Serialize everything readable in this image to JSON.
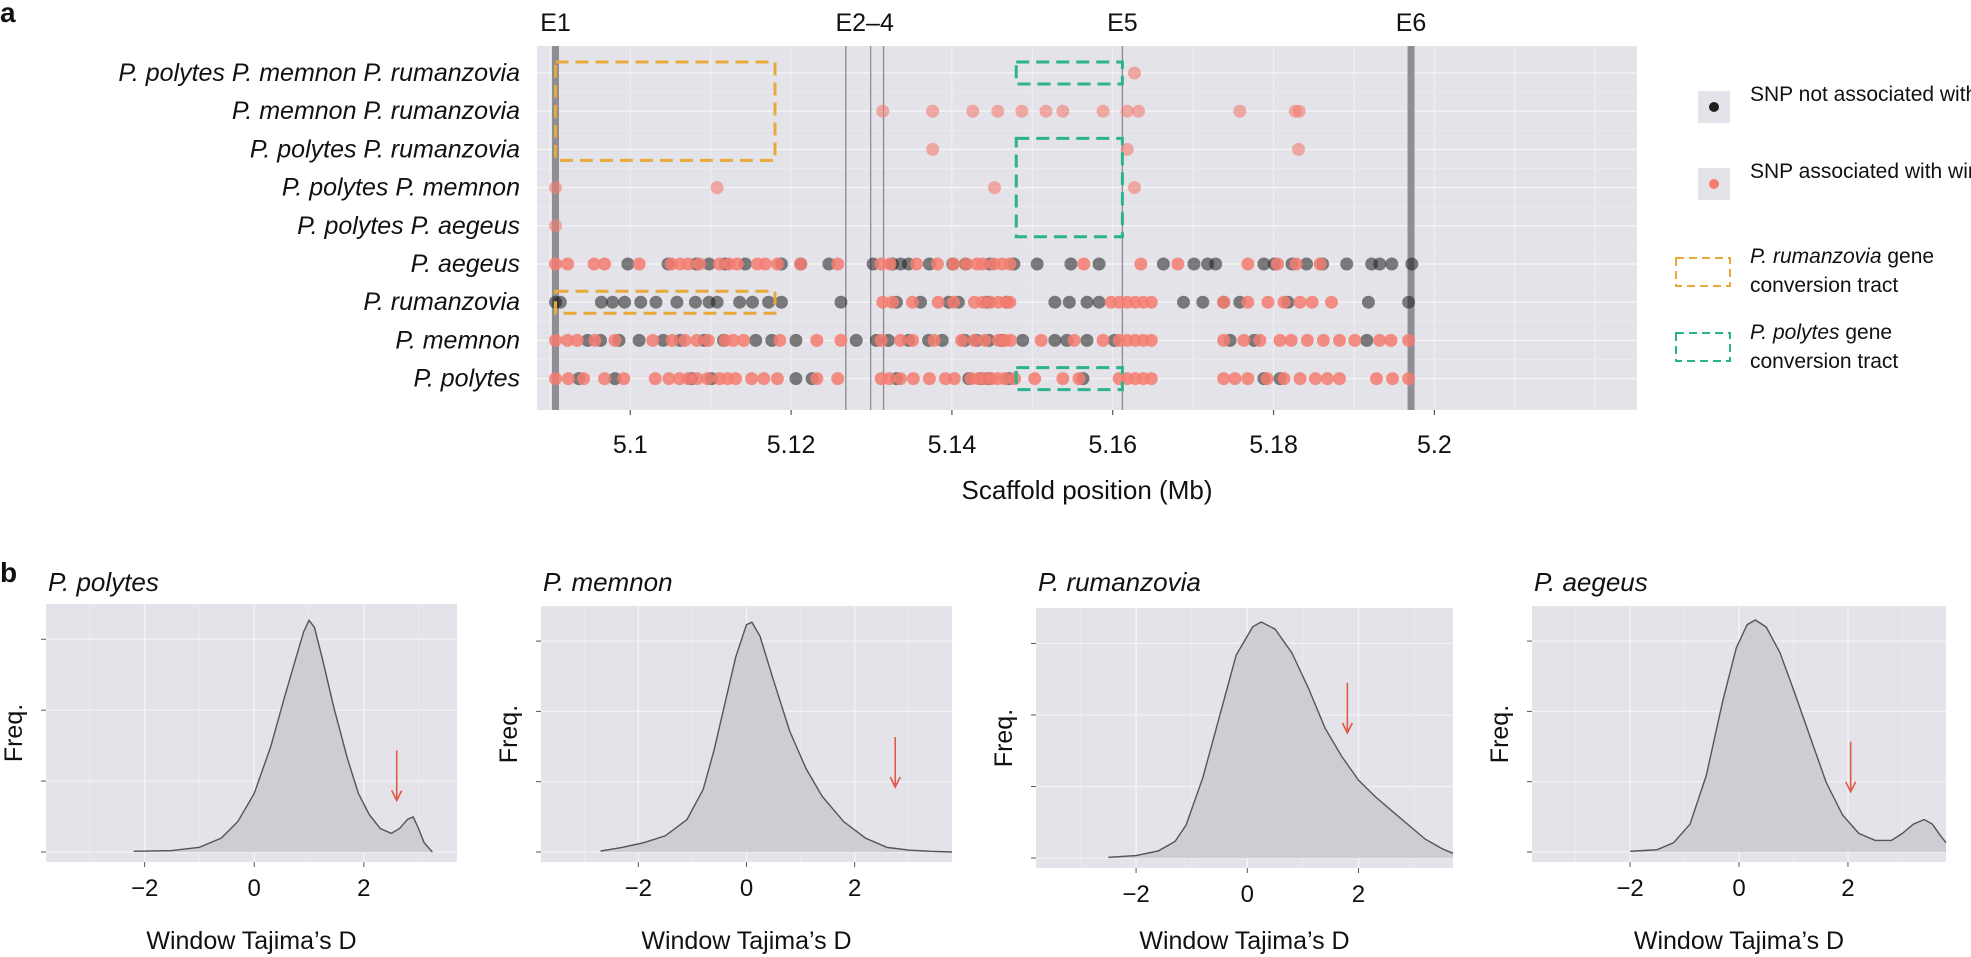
{
  "chart_data": [
    {
      "type": "scatter",
      "panel_label": "a",
      "xlabel": "Scaffold position (Mb)",
      "xlim": [
        5.0884,
        5.2252
      ],
      "xticks": [
        5.1,
        5.12,
        5.14,
        5.16,
        5.18,
        5.2
      ],
      "tick_labels": [
        "5.1",
        "5.12",
        "5.14",
        "5.16",
        "5.18",
        "5.2"
      ],
      "exons": [
        {
          "label": "E1",
          "pos": 5.0907
        },
        {
          "label": "E2–4",
          "pos": [
            5.1268,
            5.1299,
            5.1315
          ]
        },
        {
          "label": "E5",
          "pos": 5.1612
        },
        {
          "label": "E6",
          "pos": 5.1971
        }
      ],
      "rows": [
        "P. polytes P. memnon P. rumanzovia",
        "P. memnon P. rumanzovia",
        "P. polytes P. rumanzovia",
        "P. polytes P. memnon",
        "P. polytes P. aegeus",
        "P. aegeus",
        "P. rumanzovia",
        "P. memnon",
        "P. polytes"
      ],
      "legend": {
        "snp_not": "SNP not associated with wing pattern",
        "snp_assoc": "SNP associated with wing pattern",
        "rum_italic": "P. rumanzovia",
        "rum_tail": " gene",
        "rum_line2": "conversion tract",
        "pol_italic": "P. polytes",
        "pol_tail": " gene",
        "pol_line2": "conversion tract"
      },
      "colors": {
        "panel_bg": "#e3e3e9",
        "not_associated": "#1f1f1f",
        "associated": "#f47c70",
        "rumanzovia_tract": "#e8a93a",
        "polytes_tract": "#2bb38a",
        "exon_line": "#8e8e94"
      },
      "tracts": [
        {
          "species": "P. rumanzovia",
          "x": [
            5.0907,
            5.118
          ],
          "rows": [
            0,
            2
          ]
        },
        {
          "species": "P. rumanzovia",
          "x": [
            5.0907,
            5.118
          ],
          "rows": [
            6,
            6
          ]
        },
        {
          "species": "P. polytes",
          "x": [
            5.148,
            5.1612
          ],
          "rows": [
            0,
            0
          ]
        },
        {
          "species": "P. polytes",
          "x": [
            5.148,
            5.1612
          ],
          "rows": [
            2,
            4
          ]
        },
        {
          "species": "P. polytes",
          "x": [
            5.148,
            5.1612
          ],
          "rows": [
            8,
            8
          ]
        }
      ],
      "points": {
        "P. polytes P. memnon P. rumanzovia": {
          "assoc": [
            5.1627
          ],
          "not": []
        },
        "P. memnon P. rumanzovia": {
          "assoc": [
            5.1314,
            5.1376,
            5.1426,
            5.1457,
            5.1487,
            5.1517,
            5.1538,
            5.1588,
            5.1618,
            5.1632,
            5.1758,
            5.1827,
            5.1832
          ],
          "not": []
        },
        "P. polytes P. rumanzovia": {
          "assoc": [
            5.1376,
            5.1618,
            5.1831
          ],
          "not": []
        },
        "P. polytes P. memnon": {
          "assoc": [
            5.0907,
            5.1108,
            5.1453,
            5.1627
          ],
          "not": []
        },
        "P. polytes P. aegeus": {
          "assoc": [
            5.0907
          ],
          "not": []
        },
        "P. aegeus": {
          "assoc": [
            5.0907,
            5.0922,
            5.0955,
            5.0968,
            5.1011,
            5.1051,
            5.1062,
            5.1072,
            5.1086,
            5.1111,
            5.1123,
            5.1133,
            5.1158,
            5.1168,
            5.1183,
            5.1212,
            5.1258,
            5.1312,
            5.1323,
            5.1356,
            5.1382,
            5.1402,
            5.1418,
            5.1431,
            5.1438,
            5.1452,
            5.1462,
            5.1472,
            5.1564,
            5.1635,
            5.1681,
            5.1768,
            5.1805,
            5.1828,
            5.1858
          ],
          "not": [
            5.0997,
            5.1047,
            5.1082,
            5.1098,
            5.1118,
            5.1143,
            5.1188,
            5.1212,
            5.1247,
            5.1302,
            5.1326,
            5.1336,
            5.1346,
            5.1372,
            5.1401,
            5.1417,
            5.1447,
            5.1477,
            5.1506,
            5.1548,
            5.1583,
            5.1663,
            5.1701,
            5.1718,
            5.1728,
            5.1788,
            5.1801,
            5.1823,
            5.1841,
            5.1861,
            5.1891,
            5.1922,
            5.1932,
            5.1947,
            5.1972
          ]
        },
        "P. rumanzovia": {
          "assoc": [
            5.1314,
            5.1326,
            5.1351,
            5.1383,
            5.1402,
            5.1428,
            5.1438,
            5.1448,
            5.1458,
            5.1468,
            5.1472,
            5.1598,
            5.1608,
            5.1618,
            5.1628,
            5.1638,
            5.1648,
            5.1738,
            5.1768,
            5.1793,
            5.1813,
            5.1833,
            5.1848,
            5.1872
          ],
          "not": [
            5.0907,
            5.0913,
            5.0964,
            5.0978,
            5.0993,
            5.1013,
            5.1032,
            5.1058,
            5.1081,
            5.1098,
            5.1108,
            5.1136,
            5.1152,
            5.1172,
            5.1188,
            5.1262,
            5.1331,
            5.1361,
            5.1396,
            5.1408,
            5.1444,
            5.1468,
            5.1528,
            5.1546,
            5.1568,
            5.1583,
            5.1688,
            5.1712,
            5.1738,
            5.1758,
            5.1818,
            5.1918,
            5.1968
          ]
        },
        "P. memnon": {
          "assoc": [
            5.0907,
            5.0922,
            5.0934,
            5.0956,
            5.0981,
            5.1028,
            5.1052,
            5.1068,
            5.1083,
            5.1097,
            5.1118,
            5.1128,
            5.1141,
            5.1186,
            5.1232,
            5.1262,
            5.1312,
            5.1336,
            5.1351,
            5.1378,
            5.1412,
            5.1428,
            5.1441,
            5.1458,
            5.1466,
            5.1473,
            5.1511,
            5.1552,
            5.1588,
            5.1608,
            5.1618,
            5.1628,
            5.1638,
            5.1648,
            5.1738,
            5.1763,
            5.1783,
            5.1808,
            5.1822,
            5.1842,
            5.1862,
            5.1882,
            5.1901,
            5.1932,
            5.1946,
            5.1968
          ],
          "not": [
            5.0947,
            5.0963,
            5.0986,
            5.1011,
            5.1041,
            5.1062,
            5.1092,
            5.1116,
            5.1156,
            5.1176,
            5.1206,
            5.1281,
            5.1306,
            5.1321,
            5.1346,
            5.1371,
            5.1388,
            5.1416,
            5.1431,
            5.1446,
            5.1462,
            5.1488,
            5.1528,
            5.1543,
            5.1568,
            5.1602,
            5.1746,
            5.1776,
            5.1916
          ]
        },
        "P. polytes": {
          "assoc": [
            5.0907,
            5.0923,
            5.0942,
            5.0968,
            5.0992,
            5.1031,
            5.1048,
            5.1061,
            5.1072,
            5.1083,
            5.1096,
            5.1111,
            5.1121,
            5.1131,
            5.1151,
            5.1166,
            5.1183,
            5.1232,
            5.1258,
            5.1312,
            5.1322,
            5.1336,
            5.1352,
            5.1372,
            5.1392,
            5.1403,
            5.1424,
            5.1433,
            5.1441,
            5.1449,
            5.1457,
            5.1466,
            5.1478,
            5.1503,
            5.1538,
            5.1558,
            5.1608,
            5.1618,
            5.1628,
            5.1638,
            5.1648,
            5.1738,
            5.1752,
            5.1768,
            5.1792,
            5.1813,
            5.1833,
            5.1852,
            5.1867,
            5.1882,
            5.1928,
            5.1948,
            5.1968
          ],
          "not": [
            5.0936,
            5.0981,
            5.1076,
            5.1101,
            5.1206,
            5.1226,
            5.1331,
            5.1421,
            5.1436,
            5.1446,
            5.1471,
            5.1563,
            5.1788,
            5.1808
          ]
        }
      }
    },
    {
      "type": "area",
      "panel_label": "b",
      "xlabel": "Window Tajima’s D",
      "ylabel": "Freq.",
      "xticks": [
        -2,
        0,
        2
      ],
      "tick_labels": [
        "−2",
        "0",
        "2"
      ],
      "panels": [
        {
          "title": "P. polytes",
          "xlim": [
            -3.8,
            3.7
          ],
          "ylim": [
            0,
            1.0
          ],
          "arrow_x": 2.6,
          "arrow_y": 0.22,
          "curve": [
            [
              -2.2,
              0.003
            ],
            [
              -1.5,
              0.006
            ],
            [
              -1.0,
              0.02
            ],
            [
              -0.6,
              0.06
            ],
            [
              -0.3,
              0.13
            ],
            [
              0,
              0.25
            ],
            [
              0.3,
              0.45
            ],
            [
              0.55,
              0.66
            ],
            [
              0.75,
              0.82
            ],
            [
              0.9,
              0.94
            ],
            [
              1.0,
              0.99
            ],
            [
              1.1,
              0.96
            ],
            [
              1.25,
              0.82
            ],
            [
              1.45,
              0.62
            ],
            [
              1.7,
              0.4
            ],
            [
              1.9,
              0.25
            ],
            [
              2.1,
              0.16
            ],
            [
              2.3,
              0.1
            ],
            [
              2.5,
              0.08
            ],
            [
              2.65,
              0.1
            ],
            [
              2.8,
              0.14
            ],
            [
              2.9,
              0.15
            ],
            [
              3.0,
              0.1
            ],
            [
              3.1,
              0.04
            ],
            [
              3.25,
              0.0
            ]
          ]
        },
        {
          "title": "P. memnon",
          "xlim": [
            -3.8,
            3.8
          ],
          "ylim": [
            0,
            1.0
          ],
          "arrow_x": 2.75,
          "arrow_y": 0.28,
          "curve": [
            [
              -2.7,
              0.004
            ],
            [
              -2.3,
              0.02
            ],
            [
              -1.9,
              0.04
            ],
            [
              -1.5,
              0.07
            ],
            [
              -1.1,
              0.14
            ],
            [
              -0.8,
              0.27
            ],
            [
              -0.6,
              0.44
            ],
            [
              -0.4,
              0.64
            ],
            [
              -0.2,
              0.84
            ],
            [
              0,
              0.98
            ],
            [
              0.1,
              0.99
            ],
            [
              0.25,
              0.93
            ],
            [
              0.5,
              0.74
            ],
            [
              0.8,
              0.52
            ],
            [
              1.1,
              0.36
            ],
            [
              1.4,
              0.24
            ],
            [
              1.8,
              0.13
            ],
            [
              2.2,
              0.06
            ],
            [
              2.6,
              0.02
            ],
            [
              3.0,
              0.008
            ],
            [
              3.4,
              0.003
            ],
            [
              3.8,
              0.0
            ]
          ]
        },
        {
          "title": "P. rumanzovia",
          "xlim": [
            -3.8,
            3.7
          ],
          "ylim": [
            0,
            1.0
          ],
          "arrow_x": 1.8,
          "arrow_y": 0.53,
          "curve": [
            [
              -2.5,
              0.003
            ],
            [
              -2.0,
              0.01
            ],
            [
              -1.6,
              0.03
            ],
            [
              -1.3,
              0.07
            ],
            [
              -1.1,
              0.14
            ],
            [
              -0.8,
              0.34
            ],
            [
              -0.5,
              0.6
            ],
            [
              -0.2,
              0.86
            ],
            [
              0.1,
              0.98
            ],
            [
              0.25,
              1.0
            ],
            [
              0.5,
              0.97
            ],
            [
              0.8,
              0.87
            ],
            [
              1.1,
              0.72
            ],
            [
              1.4,
              0.55
            ],
            [
              1.7,
              0.43
            ],
            [
              2.0,
              0.33
            ],
            [
              2.3,
              0.26
            ],
            [
              2.6,
              0.2
            ],
            [
              2.9,
              0.14
            ],
            [
              3.2,
              0.08
            ],
            [
              3.5,
              0.04
            ],
            [
              3.7,
              0.02
            ]
          ]
        },
        {
          "title": "P. aegeus",
          "xlim": [
            -3.8,
            3.8
          ],
          "ylim": [
            0,
            1.0
          ],
          "arrow_x": 2.05,
          "arrow_y": 0.26,
          "curve": [
            [
              -2.0,
              0.003
            ],
            [
              -1.5,
              0.01
            ],
            [
              -1.2,
              0.04
            ],
            [
              -0.9,
              0.12
            ],
            [
              -0.6,
              0.33
            ],
            [
              -0.3,
              0.65
            ],
            [
              -0.05,
              0.88
            ],
            [
              0.15,
              0.98
            ],
            [
              0.3,
              1.0
            ],
            [
              0.5,
              0.97
            ],
            [
              0.75,
              0.86
            ],
            [
              1.0,
              0.7
            ],
            [
              1.3,
              0.5
            ],
            [
              1.6,
              0.3
            ],
            [
              1.9,
              0.16
            ],
            [
              2.2,
              0.08
            ],
            [
              2.5,
              0.05
            ],
            [
              2.8,
              0.05
            ],
            [
              3.0,
              0.08
            ],
            [
              3.2,
              0.12
            ],
            [
              3.4,
              0.14
            ],
            [
              3.55,
              0.12
            ],
            [
              3.7,
              0.07
            ],
            [
              3.8,
              0.04
            ]
          ]
        }
      ]
    }
  ]
}
